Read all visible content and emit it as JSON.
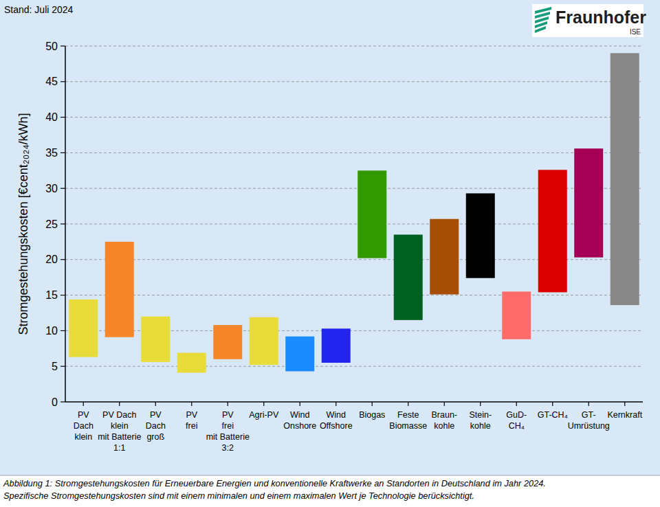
{
  "chart_data": {
    "type": "range_bar",
    "annotations": [
      "Stand: Juli 2024",
      "Fraunhofer",
      "ISE"
    ],
    "y_label": "Stromgestehungskosten [€cent₂₀₂₄/kWh]",
    "caption": [
      "Abbildung 1: Stromgestehungskosten für Erneuerbare Energien und konventionelle Kraftwerke an Standorten in Deutschland im Jahr 2024.",
      "Spezifische Stromgestehungskosten sind mit einem minimalen und einem maximalen Wert je Technologie berücksichtigt."
    ],
    "categories": [
      "PV\nDach\nklein",
      "PV Dach\nklein\nmit Batterie\n1:1",
      "PV\nDach\ngroß",
      "PV\nfrei",
      "PV\nfrei\nmit Batterie\n3:2",
      "Agri-PV",
      "Wind\nOnshore",
      "Wind\nOffshore",
      "Biogas",
      "Feste\nBiomasse",
      "Braun-\nkohle",
      "Stein-\nkohle",
      "GuD-\nCH₄",
      "GT-CH₄",
      "GT-\nUmrüstung",
      "Kernkraft"
    ],
    "values": [
      [
        6.3,
        14.4
      ],
      [
        9.1,
        22.5
      ],
      [
        5.6,
        12.0
      ],
      [
        4.1,
        6.9
      ],
      [
        6.0,
        10.8
      ],
      [
        5.2,
        11.9
      ],
      [
        4.3,
        9.2
      ],
      [
        5.5,
        10.3
      ],
      [
        20.2,
        32.5
      ],
      [
        11.5,
        23.5
      ],
      [
        15.1,
        25.7
      ],
      [
        17.4,
        29.3
      ],
      [
        8.8,
        15.5
      ],
      [
        15.4,
        32.6
      ],
      [
        20.3,
        35.6
      ],
      [
        13.6,
        49.0
      ]
    ],
    "colors": [
      "#e8dc3a",
      "#f7862a",
      "#e8dc3a",
      "#e8dc3a",
      "#f7862a",
      "#e8dc3a",
      "#1a8cff",
      "#2424f0",
      "#339900",
      "#006122",
      "#a64f05",
      "#000000",
      "#ff6b6b",
      "#dd0000",
      "#a30055",
      "#888888"
    ],
    "ylim": [
      0,
      50
    ],
    "yticks": [
      0,
      5,
      10,
      15,
      20,
      25,
      30,
      35,
      40,
      45,
      50
    ],
    "grid": true
  }
}
